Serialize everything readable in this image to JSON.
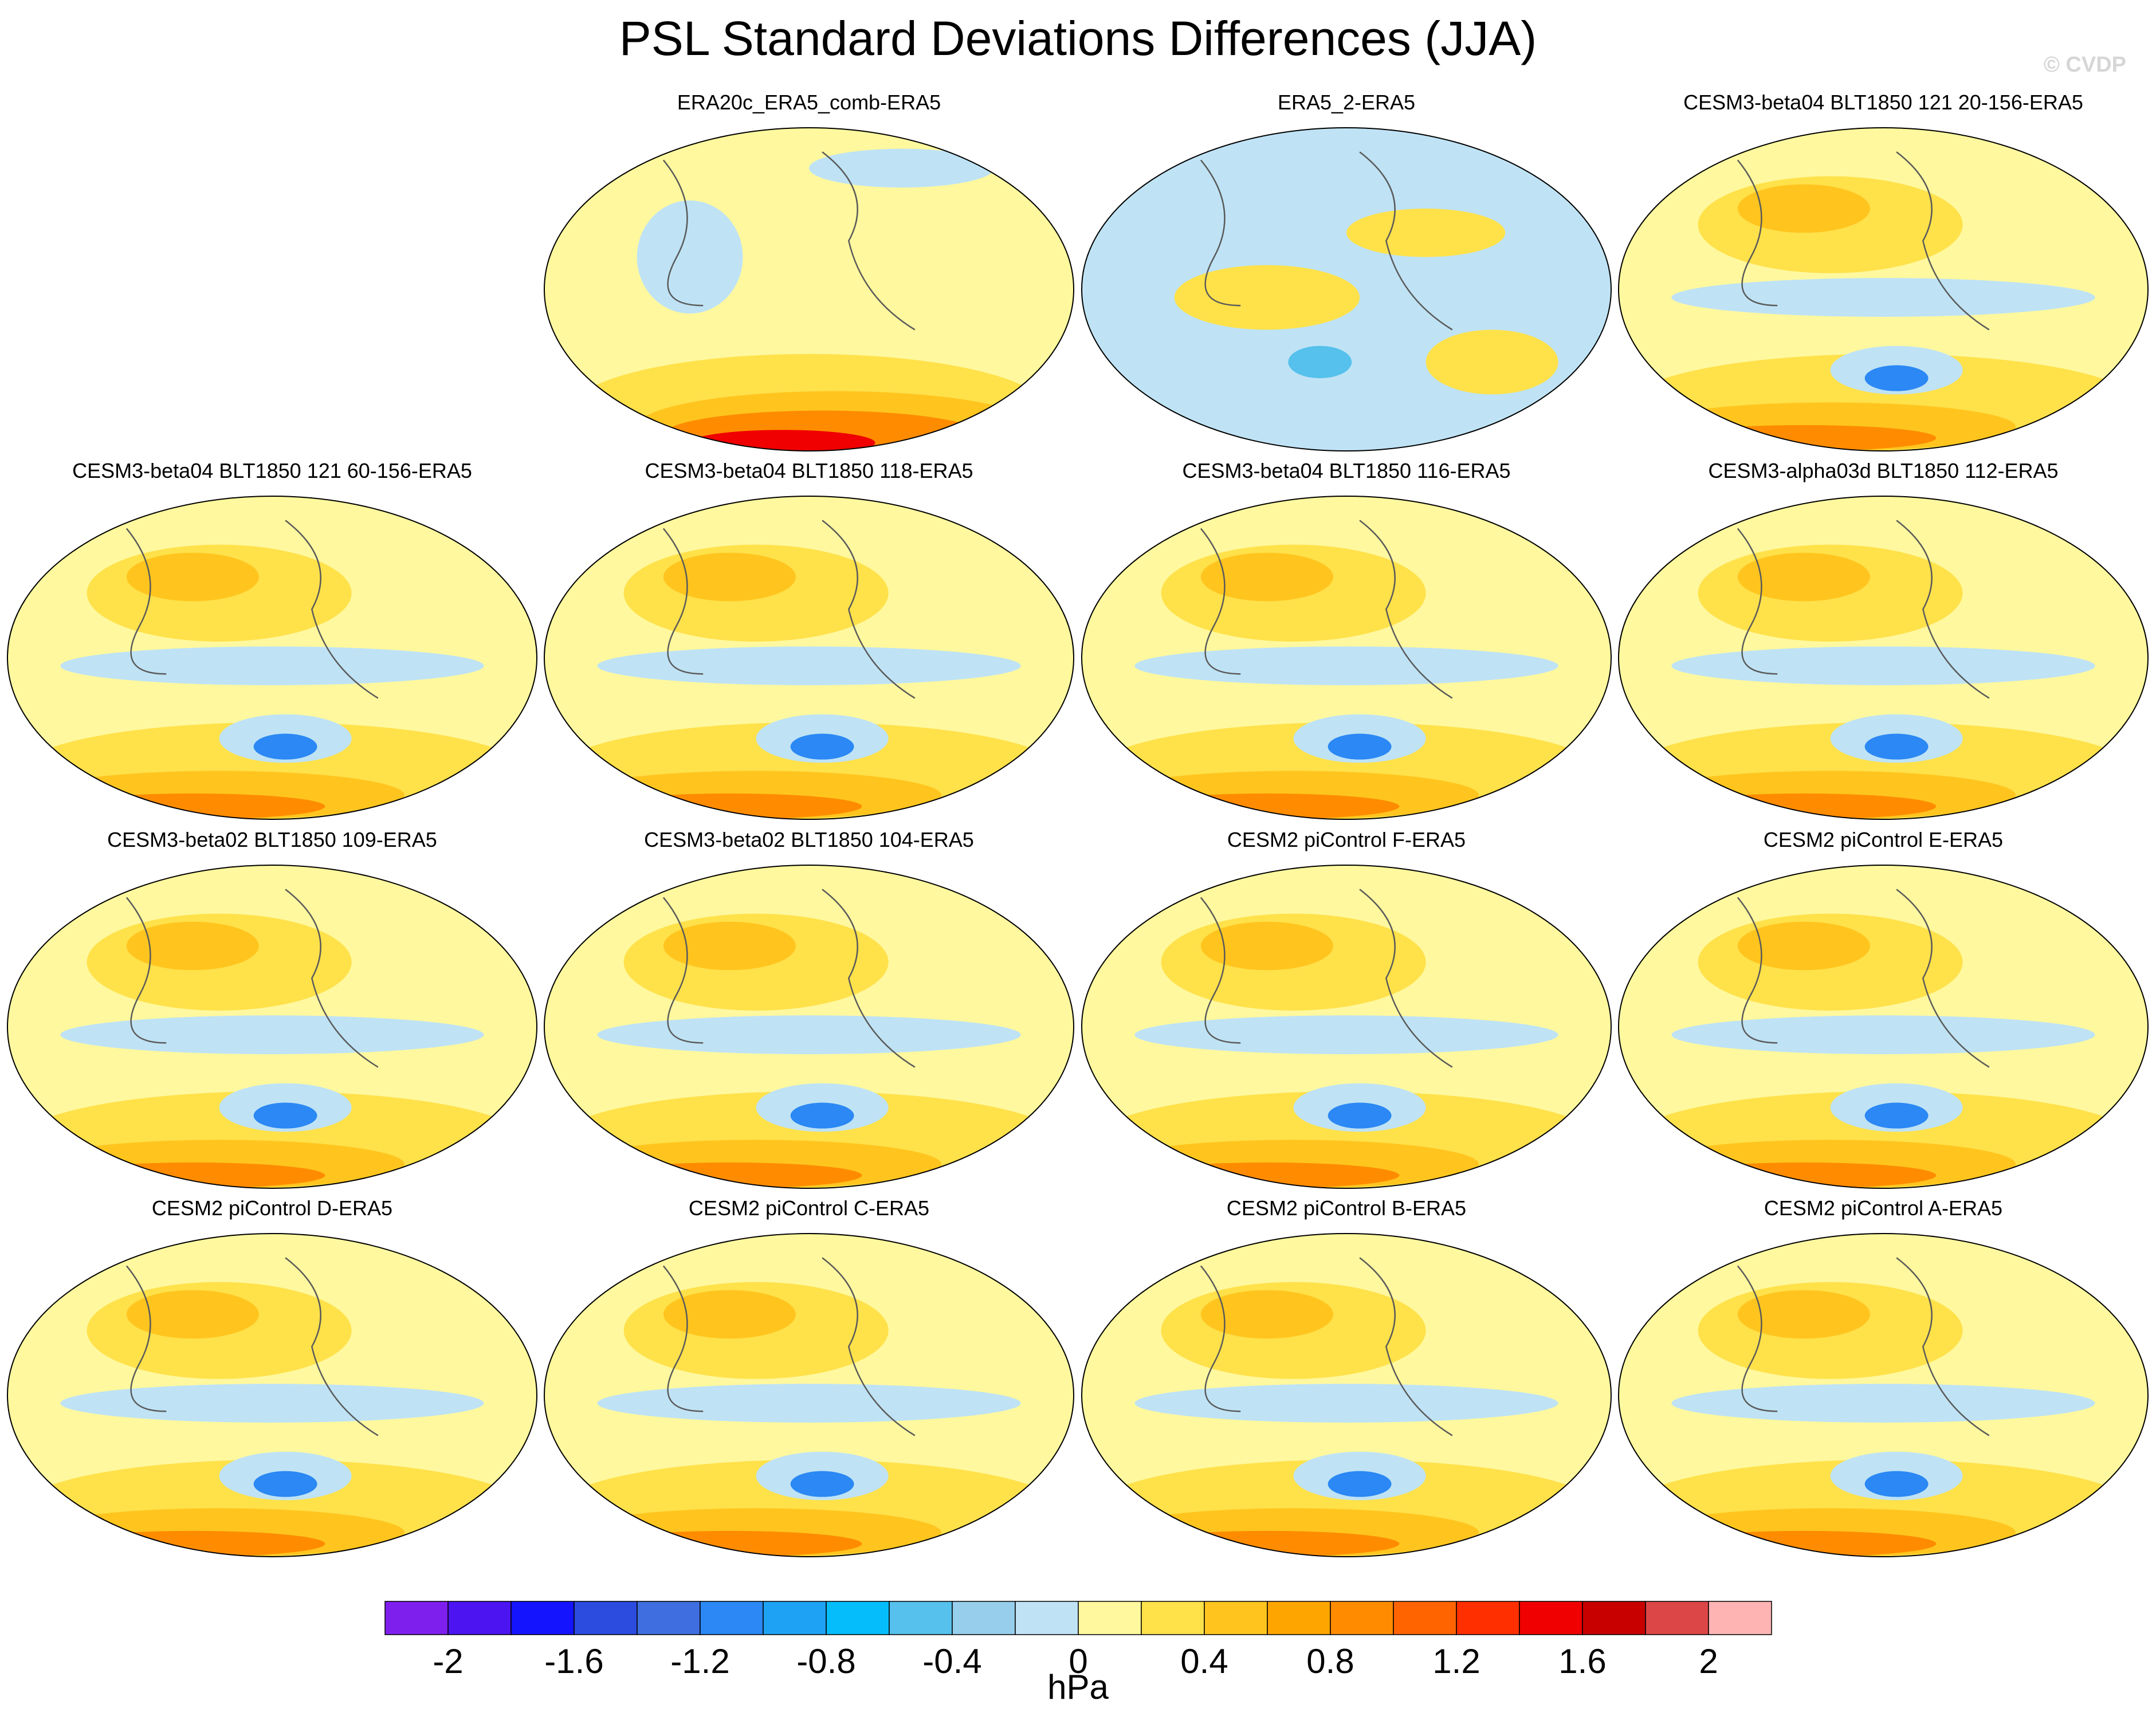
{
  "title": "PSL Standard Deviations Differences (JJA)",
  "watermark": "© CVDP",
  "panels": [
    {
      "title": "ERA20c_ERA5_comb-ERA5",
      "row": 0,
      "col": 1
    },
    {
      "title": "ERA5_2-ERA5",
      "row": 0,
      "col": 2
    },
    {
      "title": "CESM3-beta04 BLT1850 121 20-156-ERA5",
      "row": 0,
      "col": 3
    },
    {
      "title": "CESM3-beta04 BLT1850 121 60-156-ERA5",
      "row": 1,
      "col": 0
    },
    {
      "title": "CESM3-beta04 BLT1850 118-ERA5",
      "row": 1,
      "col": 1
    },
    {
      "title": "CESM3-beta04 BLT1850 116-ERA5",
      "row": 1,
      "col": 2
    },
    {
      "title": "CESM3-alpha03d BLT1850 112-ERA5",
      "row": 1,
      "col": 3
    },
    {
      "title": "CESM3-beta02 BLT1850 109-ERA5",
      "row": 2,
      "col": 0
    },
    {
      "title": "CESM3-beta02 BLT1850 104-ERA5",
      "row": 2,
      "col": 1
    },
    {
      "title": "CESM2 piControl F-ERA5",
      "row": 2,
      "col": 2
    },
    {
      "title": "CESM2 piControl E-ERA5",
      "row": 2,
      "col": 3
    },
    {
      "title": "CESM2 piControl D-ERA5",
      "row": 3,
      "col": 0
    },
    {
      "title": "CESM2 piControl C-ERA5",
      "row": 3,
      "col": 1
    },
    {
      "title": "CESM2 piControl B-ERA5",
      "row": 3,
      "col": 2
    },
    {
      "title": "CESM2 piControl A-ERA5",
      "row": 3,
      "col": 3
    }
  ],
  "colorbar": {
    "colors": [
      "#7f1fee",
      "#4b14f0",
      "#1414ff",
      "#2c4bdf",
      "#3e6ee0",
      "#2b88f4",
      "#1ea3f4",
      "#05bdfb",
      "#55c1ec",
      "#96ceec",
      "#bfe3f5",
      "#fff89e",
      "#ffe14a",
      "#ffc51e",
      "#ffa500",
      "#ff8c00",
      "#ff6400",
      "#ff2f00",
      "#f00000",
      "#c80000",
      "#dd4646",
      "#ffb4b4"
    ],
    "tick_values": [
      -2,
      -1.6,
      -1.2,
      -0.8,
      -0.4,
      0,
      0.4,
      0.8,
      1.2,
      1.6,
      2
    ],
    "tick_labels": [
      "-2",
      "-1.6",
      "-1.2",
      "-0.8",
      "-0.4",
      "0",
      "0.4",
      "0.8",
      "1.2",
      "1.6",
      "2"
    ],
    "units": "hPa"
  },
  "fill_colors": {
    "neutral": "#fff89e",
    "negative_light": "#bfe3f5",
    "negative_mid": "#55c1ec",
    "negative_strong": "#2b88f4",
    "positive_light": "#ffe14a",
    "positive_mid": "#ffc51e",
    "positive_strong": "#ff8c00",
    "positive_max": "#f00000",
    "coast": "#5a5a5a"
  }
}
